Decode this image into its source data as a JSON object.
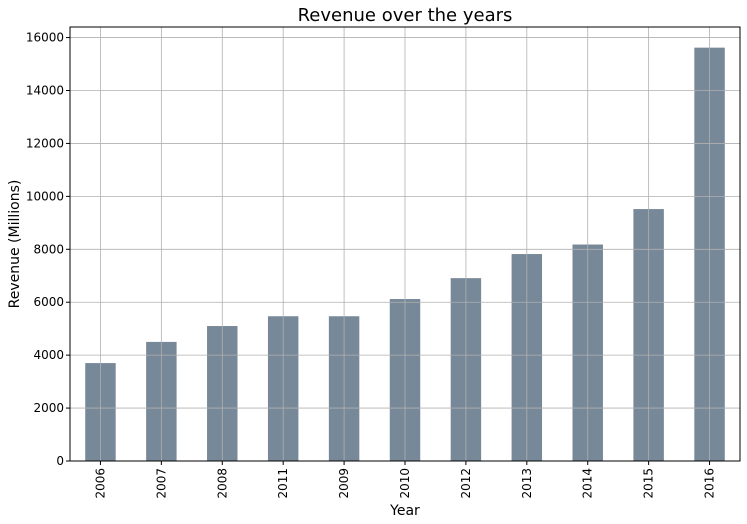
{
  "chart_data": {
    "type": "bar",
    "title": "Revenue over the years",
    "xlabel": "Year",
    "ylabel": "Revenue (Millions)",
    "categories": [
      "2006",
      "2007",
      "2008",
      "2011",
      "2009",
      "2010",
      "2012",
      "2013",
      "2014",
      "2015",
      "2016"
    ],
    "values": [
      3700,
      4500,
      5100,
      5470,
      5470,
      6120,
      6910,
      7820,
      8180,
      9520,
      15620
    ],
    "ylim": [
      0,
      16400
    ],
    "yticks": [
      0,
      2000,
      4000,
      6000,
      8000,
      10000,
      12000,
      14000,
      16000
    ],
    "grid": true,
    "bar_color": "#778899",
    "x_tick_rotation": "vertical"
  }
}
